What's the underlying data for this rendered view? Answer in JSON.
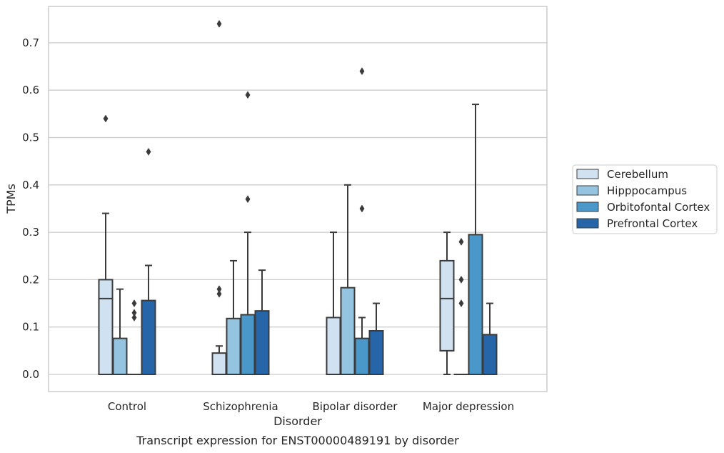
{
  "chart_data": {
    "type": "box",
    "xlabel": "Disorder",
    "ylabel": "TPMs",
    "caption": "Transcript expression for ENST00000489191 by disorder",
    "categories": [
      "Control",
      "Schizophrenia",
      "Bipolar disorder",
      "Major depression"
    ],
    "yticks": [
      "0.0",
      "0.1",
      "0.2",
      "0.3",
      "0.4",
      "0.5",
      "0.6",
      "0.7"
    ],
    "ylim": [
      -0.036,
      0.778
    ],
    "grid": "horizontal",
    "legend_position": "right",
    "series": [
      {
        "name": "Cerebellum",
        "color": "#d0e1f2",
        "boxes": [
          {
            "whislo": 0.0,
            "q1": 0.0,
            "med": 0.16,
            "q3": 0.2,
            "whishi": 0.34,
            "fliers": [
              0.54
            ]
          },
          {
            "whislo": 0.0,
            "q1": 0.0,
            "med": 0.0,
            "q3": 0.045,
            "whishi": 0.06,
            "fliers": [
              0.17,
              0.18,
              0.74
            ]
          },
          {
            "whislo": 0.0,
            "q1": 0.0,
            "med": 0.0,
            "q3": 0.12,
            "whishi": 0.3,
            "fliers": []
          },
          {
            "whislo": 0.0,
            "q1": 0.05,
            "med": 0.16,
            "q3": 0.24,
            "whishi": 0.3,
            "fliers": []
          }
        ]
      },
      {
        "name": "Hipppocampus",
        "color": "#94c4df",
        "boxes": [
          {
            "whislo": 0.0,
            "q1": 0.0,
            "med": 0.0,
            "q3": 0.076,
            "whishi": 0.18,
            "fliers": []
          },
          {
            "whislo": 0.0,
            "q1": 0.0,
            "med": 0.0,
            "q3": 0.118,
            "whishi": 0.24,
            "fliers": []
          },
          {
            "whislo": 0.0,
            "q1": 0.0,
            "med": 0.0,
            "q3": 0.183,
            "whishi": 0.4,
            "fliers": []
          },
          {
            "whislo": 0.0,
            "q1": 0.0,
            "med": 0.0,
            "q3": 0.0,
            "whishi": 0.0,
            "fliers": [
              0.15,
              0.2,
              0.28
            ]
          }
        ]
      },
      {
        "name": "Orbitofontal Cortex",
        "color": "#4a98c9",
        "boxes": [
          {
            "whislo": 0.0,
            "q1": 0.0,
            "med": 0.0,
            "q3": 0.0,
            "whishi": 0.0,
            "fliers": [
              0.12,
              0.13,
              0.15
            ]
          },
          {
            "whislo": 0.0,
            "q1": 0.0,
            "med": 0.0,
            "q3": 0.126,
            "whishi": 0.3,
            "fliers": [
              0.37,
              0.59
            ]
          },
          {
            "whislo": 0.0,
            "q1": 0.0,
            "med": 0.0,
            "q3": 0.076,
            "whishi": 0.12,
            "fliers": [
              0.35,
              0.64
            ]
          },
          {
            "whislo": 0.0,
            "q1": 0.0,
            "med": 0.0,
            "q3": 0.295,
            "whishi": 0.57,
            "fliers": []
          }
        ]
      },
      {
        "name": "Prefrontal Cortex",
        "color": "#2565a8",
        "boxes": [
          {
            "whislo": 0.0,
            "q1": 0.0,
            "med": 0.0,
            "q3": 0.156,
            "whishi": 0.23,
            "fliers": [
              0.47
            ]
          },
          {
            "whislo": 0.0,
            "q1": 0.0,
            "med": 0.0,
            "q3": 0.134,
            "whishi": 0.22,
            "fliers": []
          },
          {
            "whislo": 0.0,
            "q1": 0.0,
            "med": 0.0,
            "q3": 0.092,
            "whishi": 0.15,
            "fliers": []
          },
          {
            "whislo": 0.0,
            "q1": 0.0,
            "med": 0.0,
            "q3": 0.084,
            "whishi": 0.15,
            "fliers": []
          }
        ]
      }
    ]
  }
}
